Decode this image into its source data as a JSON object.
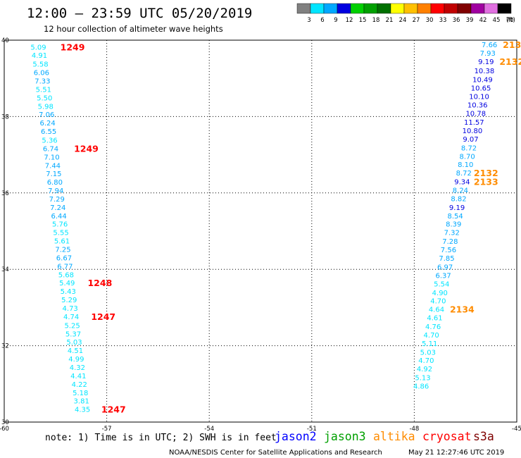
{
  "header": {
    "title": "12:00 – 23:59 UTC 05/20/2019",
    "subtitle": "12 hour collection of altimeter wave heights"
  },
  "scale": {
    "labels": [
      "3",
      "6",
      "9",
      "12",
      "15",
      "18",
      "21",
      "24",
      "27",
      "30",
      "33",
      "36",
      "39",
      "42",
      "45",
      "70"
    ],
    "unit": "(ft)",
    "colors": [
      "#808080",
      "#00e5ff",
      "#00a8ff",
      "#0000e0",
      "#00d000",
      "#00a000",
      "#007000",
      "#ffff00",
      "#ffc000",
      "#ff8000",
      "#ff0000",
      "#c00000",
      "#800000",
      "#a000a0",
      "#e070e0",
      "#000000"
    ]
  },
  "footer": {
    "note": "note:  1) Time is in UTC; 2) SWH is in feet",
    "credit": "NOAA/NESDIS Center for Satellite Applications and Research",
    "timestamp": "May 21 12:27:46 UTC 2019",
    "legend": [
      {
        "name": "jason2",
        "color": "#0000ff"
      },
      {
        "name": "jason3",
        "color": "#00a000"
      },
      {
        "name": "altika",
        "color": "#ff8c00"
      },
      {
        "name": "cryosat",
        "color": "#ff0000"
      },
      {
        "name": "s3a",
        "color": "#800000"
      }
    ]
  },
  "chart_data": {
    "type": "scatter",
    "xlim": [
      -60,
      -45
    ],
    "ylim": [
      30,
      40
    ],
    "xticks": [
      -60,
      -57,
      -54,
      -51,
      -48,
      -45
    ],
    "yticks": [
      30,
      32,
      34,
      36,
      38,
      40
    ],
    "grid": true,
    "series": [
      {
        "name": "s3a",
        "color_hint": "swh",
        "points": [
          {
            "x": -59.0,
            "y": 39.82,
            "v": "5.09"
          },
          {
            "x": -58.97,
            "y": 39.6,
            "v": "4.91"
          },
          {
            "x": -58.94,
            "y": 39.37,
            "v": "5.58"
          },
          {
            "x": -58.91,
            "y": 39.15,
            "v": "6.06"
          },
          {
            "x": -58.88,
            "y": 38.93,
            "v": "7.33"
          },
          {
            "x": -58.85,
            "y": 38.71,
            "v": "5.51"
          },
          {
            "x": -58.82,
            "y": 38.49,
            "v": "5.50"
          },
          {
            "x": -58.79,
            "y": 38.27,
            "v": "5.98"
          },
          {
            "x": -58.76,
            "y": 38.05,
            "v": "7.06"
          },
          {
            "x": -58.73,
            "y": 37.83,
            "v": "6.24"
          },
          {
            "x": -58.7,
            "y": 37.61,
            "v": "6.55"
          },
          {
            "x": -58.67,
            "y": 37.38,
            "v": "5.36"
          },
          {
            "x": -58.64,
            "y": 37.16,
            "v": "6.74"
          },
          {
            "x": -58.61,
            "y": 36.94,
            "v": "7.10"
          },
          {
            "x": -58.58,
            "y": 36.72,
            "v": "7.44"
          },
          {
            "x": -58.55,
            "y": 36.5,
            "v": "7.15"
          },
          {
            "x": -58.52,
            "y": 36.28,
            "v": "6.80"
          },
          {
            "x": -58.49,
            "y": 36.06,
            "v": "7.94"
          },
          {
            "x": -58.46,
            "y": 35.84,
            "v": "7.29"
          },
          {
            "x": -58.43,
            "y": 35.62,
            "v": "7.24"
          },
          {
            "x": -58.4,
            "y": 35.4,
            "v": "6.44"
          },
          {
            "x": -58.37,
            "y": 35.18,
            "v": "5.76"
          },
          {
            "x": -58.34,
            "y": 34.96,
            "v": "5.55"
          },
          {
            "x": -58.31,
            "y": 34.74,
            "v": "5.61"
          },
          {
            "x": -58.28,
            "y": 34.52,
            "v": "7.25"
          },
          {
            "x": -58.25,
            "y": 34.3,
            "v": "6.67"
          },
          {
            "x": -58.22,
            "y": 34.08,
            "v": "6.77"
          },
          {
            "x": -58.19,
            "y": 33.86,
            "v": "5.68"
          },
          {
            "x": -58.16,
            "y": 33.64,
            "v": "5.49"
          },
          {
            "x": -58.13,
            "y": 33.42,
            "v": "5.43"
          },
          {
            "x": -58.1,
            "y": 33.2,
            "v": "5.29"
          },
          {
            "x": -58.07,
            "y": 32.98,
            "v": "4.73"
          },
          {
            "x": -58.04,
            "y": 32.76,
            "v": "4.74"
          },
          {
            "x": -58.01,
            "y": 32.53,
            "v": "5.25"
          },
          {
            "x": -57.98,
            "y": 32.31,
            "v": "5.37"
          },
          {
            "x": -57.95,
            "y": 32.09,
            "v": "5.03"
          },
          {
            "x": -57.92,
            "y": 31.87,
            "v": "4.51"
          },
          {
            "x": -57.89,
            "y": 31.65,
            "v": "4.99"
          },
          {
            "x": -57.86,
            "y": 31.43,
            "v": "4.32"
          },
          {
            "x": -57.83,
            "y": 31.21,
            "v": "4.41"
          },
          {
            "x": -57.8,
            "y": 30.99,
            "v": "4.22"
          },
          {
            "x": -57.77,
            "y": 30.77,
            "v": "5.18"
          },
          {
            "x": -57.74,
            "y": 30.55,
            "v": "3.81"
          },
          {
            "x": -57.71,
            "y": 30.33,
            "v": "4.35"
          }
        ]
      },
      {
        "name": "altika",
        "color_hint": "swh",
        "points": [
          {
            "x": -45.8,
            "y": 39.88,
            "v": "7.66"
          },
          {
            "x": -45.85,
            "y": 39.66,
            "v": "7.93"
          },
          {
            "x": -45.9,
            "y": 39.44,
            "v": "9.19"
          },
          {
            "x": -45.95,
            "y": 39.2,
            "v": "10.38"
          },
          {
            "x": -46.0,
            "y": 38.97,
            "v": "10.49"
          },
          {
            "x": -46.05,
            "y": 38.75,
            "v": "10.65"
          },
          {
            "x": -46.1,
            "y": 38.52,
            "v": "10.10"
          },
          {
            "x": -46.15,
            "y": 38.3,
            "v": "10.36"
          },
          {
            "x": -46.2,
            "y": 38.08,
            "v": "10.78"
          },
          {
            "x": -46.25,
            "y": 37.85,
            "v": "11.57"
          },
          {
            "x": -46.3,
            "y": 37.63,
            "v": "10.80"
          },
          {
            "x": -46.35,
            "y": 37.41,
            "v": "9.07"
          },
          {
            "x": -46.4,
            "y": 37.18,
            "v": "8.72"
          },
          {
            "x": -46.45,
            "y": 36.96,
            "v": "8.70"
          },
          {
            "x": -46.5,
            "y": 36.74,
            "v": "8.10"
          },
          {
            "x": -46.55,
            "y": 36.52,
            "v": "8.72"
          },
          {
            "x": -46.6,
            "y": 36.29,
            "v": "9.34"
          },
          {
            "x": -46.65,
            "y": 36.07,
            "v": "8.24"
          },
          {
            "x": -46.7,
            "y": 35.85,
            "v": "8.82"
          },
          {
            "x": -46.75,
            "y": 35.62,
            "v": "9.19"
          },
          {
            "x": -46.8,
            "y": 35.4,
            "v": "8.54"
          },
          {
            "x": -46.85,
            "y": 35.18,
            "v": "8.39"
          },
          {
            "x": -46.9,
            "y": 34.96,
            "v": "7.32"
          },
          {
            "x": -46.95,
            "y": 34.73,
            "v": "7.28"
          },
          {
            "x": -47.0,
            "y": 34.51,
            "v": "7.56"
          },
          {
            "x": -47.05,
            "y": 34.29,
            "v": "7.85"
          },
          {
            "x": -47.1,
            "y": 34.06,
            "v": "6.97"
          },
          {
            "x": -47.15,
            "y": 33.84,
            "v": "6.37"
          },
          {
            "x": -47.2,
            "y": 33.62,
            "v": "5.54"
          },
          {
            "x": -47.25,
            "y": 33.39,
            "v": "4.90"
          },
          {
            "x": -47.3,
            "y": 33.17,
            "v": "4.70"
          },
          {
            "x": -47.35,
            "y": 32.95,
            "v": "4.64"
          },
          {
            "x": -47.4,
            "y": 32.73,
            "v": "4.61"
          },
          {
            "x": -47.45,
            "y": 32.5,
            "v": "4.76"
          },
          {
            "x": -47.5,
            "y": 32.28,
            "v": "4.70"
          },
          {
            "x": -47.55,
            "y": 32.06,
            "v": "5.11"
          },
          {
            "x": -47.6,
            "y": 31.83,
            "v": "5.03"
          },
          {
            "x": -47.65,
            "y": 31.61,
            "v": "4.70"
          },
          {
            "x": -47.7,
            "y": 31.39,
            "v": "4.92"
          },
          {
            "x": -47.75,
            "y": 31.16,
            "v": "5.13"
          },
          {
            "x": -47.8,
            "y": 30.94,
            "v": "4.86"
          }
        ]
      }
    ],
    "annotations": [
      {
        "text": "1249",
        "x": -58.0,
        "y": 39.82,
        "color": "#ff0000"
      },
      {
        "text": "1249",
        "x": -57.6,
        "y": 37.16,
        "color": "#ff0000"
      },
      {
        "text": "1248",
        "x": -57.2,
        "y": 33.64,
        "color": "#ff0000"
      },
      {
        "text": "1247",
        "x": -57.1,
        "y": 32.76,
        "color": "#ff0000"
      },
      {
        "text": "1247",
        "x": -56.8,
        "y": 30.33,
        "color": "#ff0000"
      },
      {
        "text": "2131",
        "x": -45.05,
        "y": 39.88,
        "color": "#ff8c00"
      },
      {
        "text": "2132",
        "x": -45.15,
        "y": 39.44,
        "color": "#ff8c00"
      },
      {
        "text": "2132",
        "x": -45.9,
        "y": 36.52,
        "color": "#ff8c00"
      },
      {
        "text": "2133",
        "x": -45.9,
        "y": 36.29,
        "color": "#ff8c00"
      },
      {
        "text": "2134",
        "x": -46.6,
        "y": 32.95,
        "color": "#ff8c00"
      }
    ]
  }
}
